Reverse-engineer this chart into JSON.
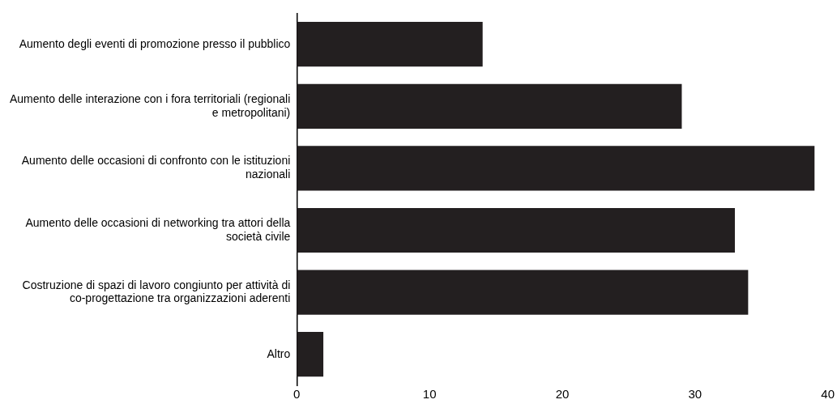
{
  "chart_data": {
    "type": "bar",
    "orientation": "horizontal",
    "categories": [
      "Aumento degli eventi di promozione presso il pubblico",
      "Aumento delle interazione con i fora territoriali (regionali e metropolitani)",
      "Aumento delle occasioni di confronto con le istituzioni nazionali",
      "Aumento delle occasioni di networking tra attori della società civile",
      "Costruzione di spazi di lavoro congiunto per attività di co-progettazione tra organizzazioni aderenti",
      "Altro"
    ],
    "values": [
      14,
      29,
      39,
      33,
      34,
      2
    ],
    "color": "#231f20",
    "xlim": [
      0,
      40
    ],
    "xticks": [
      0,
      10,
      20,
      30,
      40
    ],
    "grid": false,
    "legend": false
  }
}
